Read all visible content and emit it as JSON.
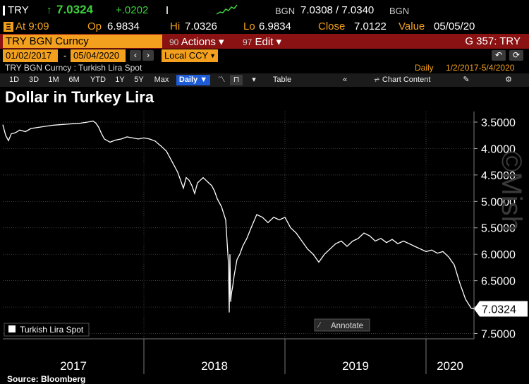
{
  "ticker_bar": {
    "ticker": "TRY",
    "last_arrow": "↑",
    "last": "7.0324",
    "change": "+.0202",
    "bgn": "BGN",
    "bid_ask": "7.0308 / 7.0340",
    "bgn2": "BGN"
  },
  "quote_bar": {
    "at": "At 9:09",
    "op_label": "Op",
    "op": "6.9834",
    "hi_label": "Hi",
    "hi": "7.0326",
    "lo_label": "Lo",
    "lo": "6.9834",
    "close_label": "Close",
    "close": "7.0122",
    "value_label": "Value",
    "value": "05/05/20"
  },
  "command_bar": {
    "security": "TRY BGN Curncy",
    "actions_num": "90",
    "actions": "Actions ▾",
    "edit_num": "97",
    "edit": "Edit ▾",
    "function": "G 357: TRY"
  },
  "range_bar": {
    "start": "01/02/2017",
    "sep": "-",
    "end": "05/04/2020",
    "currency": "Local CCY"
  },
  "info_bar": {
    "security_desc": "TRY BGN Curncy : Turkish Lira Spot",
    "period": "Daily",
    "range": "1/2/2017-5/4/2020"
  },
  "toolbar": {
    "timeframes": [
      "1D",
      "3D",
      "1M",
      "6M",
      "YTD",
      "1Y",
      "5Y",
      "Max"
    ],
    "frequency": "Daily ▼",
    "table": "Table",
    "chart_content": "Chart Content"
  },
  "chart_title": "Dollar in Turkey Lira",
  "source": "Source: Bloomberg",
  "annotate": "Annotate",
  "watermark": "©Mish",
  "colors": {
    "background": "#000000",
    "orange": "#f2a01e",
    "red_bar": "#8b1212",
    "green_up": "#3cd13c",
    "line": "#ffffff"
  },
  "chart_data": {
    "type": "line",
    "title": "Dollar in Turkey Lira",
    "y_axis_inverted": true,
    "ylim": [
      3.3,
      7.6
    ],
    "yticks": [
      "3.5000",
      "4.0000",
      "4.5000",
      "5.0000",
      "5.5000",
      "6.0000",
      "6.5000",
      "7.0000",
      "7.5000"
    ],
    "ytick_values": [
      3.5,
      4.0,
      4.5,
      5.0,
      5.5,
      6.0,
      6.5,
      7.0,
      7.5
    ],
    "xlim": [
      2017.0,
      2020.34
    ],
    "xticks": [
      "2017",
      "2018",
      "2019",
      "2020"
    ],
    "xtick_boundaries": [
      2018.0,
      2019.0,
      2020.0
    ],
    "last_value_label": "7.0324",
    "last_value": 7.0324,
    "grid": true,
    "legend": "bottom-left",
    "series": [
      {
        "name": "Turkish Lira Spot",
        "x": [
          2017.0,
          2017.02,
          2017.04,
          2017.06,
          2017.09,
          2017.12,
          2017.16,
          2017.2,
          2017.25,
          2017.3,
          2017.35,
          2017.4,
          2017.45,
          2017.5,
          2017.55,
          2017.6,
          2017.64,
          2017.66,
          2017.68,
          2017.7,
          2017.72,
          2017.76,
          2017.8,
          2017.84,
          2017.88,
          2017.92,
          2017.96,
          2018.0,
          2018.04,
          2018.08,
          2018.12,
          2018.16,
          2018.2,
          2018.24,
          2018.28,
          2018.3,
          2018.32,
          2018.34,
          2018.36,
          2018.38,
          2018.4,
          2018.42,
          2018.44,
          2018.46,
          2018.48,
          2018.5,
          2018.52,
          2018.55,
          2018.58,
          2018.6,
          2018.605,
          2018.61,
          2018.615,
          2018.62,
          2018.63,
          2018.64,
          2018.66,
          2018.68,
          2018.7,
          2018.73,
          2018.76,
          2018.8,
          2018.84,
          2018.88,
          2018.92,
          2018.96,
          2019.0,
          2019.04,
          2019.08,
          2019.12,
          2019.16,
          2019.2,
          2019.24,
          2019.28,
          2019.32,
          2019.36,
          2019.4,
          2019.44,
          2019.48,
          2019.52,
          2019.56,
          2019.6,
          2019.64,
          2019.68,
          2019.72,
          2019.76,
          2019.8,
          2019.84,
          2019.88,
          2019.92,
          2019.96,
          2020.0,
          2020.04,
          2020.08,
          2020.12,
          2020.16,
          2020.2,
          2020.24,
          2020.28,
          2020.32,
          2020.34
        ],
        "y": [
          3.55,
          3.75,
          3.85,
          3.72,
          3.7,
          3.65,
          3.68,
          3.62,
          3.6,
          3.58,
          3.56,
          3.55,
          3.54,
          3.53,
          3.52,
          3.5,
          3.48,
          3.52,
          3.6,
          3.72,
          3.82,
          3.88,
          3.84,
          3.82,
          3.78,
          3.8,
          3.82,
          3.8,
          3.82,
          3.86,
          3.95,
          4.05,
          4.25,
          4.45,
          4.75,
          4.55,
          4.6,
          4.7,
          4.85,
          4.65,
          4.6,
          4.55,
          4.6,
          4.65,
          4.7,
          4.8,
          4.95,
          5.1,
          5.35,
          6.2,
          7.1,
          6.0,
          6.9,
          6.75,
          6.6,
          6.4,
          6.1,
          6.0,
          5.85,
          5.7,
          5.5,
          5.25,
          5.3,
          5.4,
          5.3,
          5.35,
          5.3,
          5.5,
          5.6,
          5.75,
          5.9,
          6.0,
          6.15,
          6.0,
          5.9,
          5.8,
          5.75,
          5.85,
          5.75,
          5.7,
          5.6,
          5.65,
          5.75,
          5.7,
          5.78,
          5.72,
          5.8,
          5.75,
          5.8,
          5.85,
          5.9,
          5.95,
          5.92,
          5.98,
          5.95,
          6.05,
          6.2,
          6.55,
          6.85,
          7.02,
          7.03
        ]
      }
    ]
  }
}
